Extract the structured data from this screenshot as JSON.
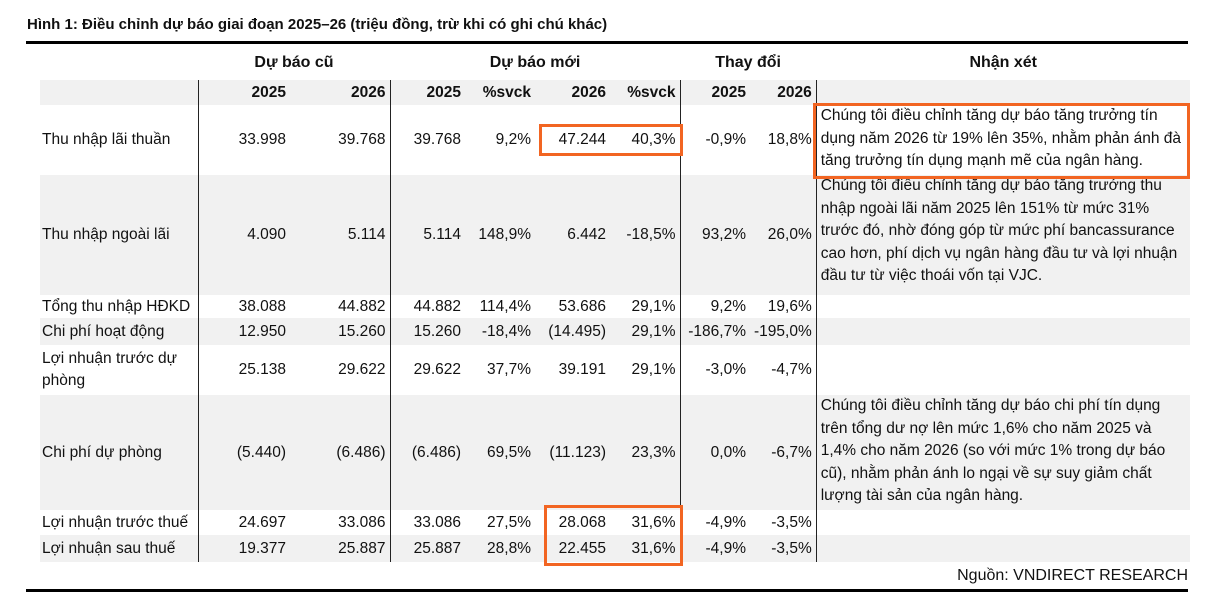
{
  "title": "Hình 1: Điều chỉnh dự báo giai đoạn 2025–26 (triệu đồng, trừ khi có ghi chú khác)",
  "groups": {
    "old": "Dự báo cũ",
    "new": "Dự báo mới",
    "change": "Thay đổi",
    "comment": "Nhận xét"
  },
  "columns": [
    "2025",
    "2026",
    "2025",
    "%svck",
    "2026",
    "%svck",
    "2025",
    "2026"
  ],
  "rows": [
    {
      "label": "Thu nhập lãi thuần",
      "values": [
        "33.998",
        "39.768",
        "39.768",
        "9,2%",
        "47.244",
        "40,3%",
        "-0,9%",
        "18,8%"
      ],
      "comment": "Chúng tôi điều chỉnh tăng dự báo tăng trưởng tín dụng năm 2026 từ 19% lên 35%, nhằm phản ánh đà tăng trưởng tín dụng mạnh mẽ của ngân hàng."
    },
    {
      "label": "Thu nhập ngoài lãi",
      "values": [
        "4.090",
        "5.114",
        "5.114",
        "148,9%",
        "6.442",
        "-18,5%",
        "93,2%",
        "26,0%"
      ],
      "comment": "Chúng tôi điều chỉnh tăng dự báo tăng trưởng thu nhập ngoài lãi năm 2025 lên 151% từ mức 31% trước đó, nhờ đóng góp từ mức phí bancassurance cao hơn, phí dịch vụ ngân hàng đầu tư và lợi nhuận đầu tư từ việc thoái vốn tại VJC."
    },
    {
      "label": "Tổng thu nhập HĐKD",
      "values": [
        "38.088",
        "44.882",
        "44.882",
        "114,4%",
        "53.686",
        "29,1%",
        "9,2%",
        "19,6%"
      ],
      "comment": ""
    },
    {
      "label": "Chi phí hoạt động",
      "values": [
        "12.950",
        "15.260",
        "15.260",
        "-18,4%",
        "(14.495)",
        "29,1%",
        "-186,7%",
        "-195,0%"
      ],
      "comment": ""
    },
    {
      "label": "Lợi nhuận trước dự phòng",
      "values": [
        "25.138",
        "29.622",
        "29.622",
        "37,7%",
        "39.191",
        "29,1%",
        "-3,0%",
        "-4,7%"
      ],
      "comment": ""
    },
    {
      "label": "Chi phí dự phòng",
      "values": [
        "(5.440)",
        "(6.486)",
        "(6.486)",
        "69,5%",
        "(11.123)",
        "23,3%",
        "0,0%",
        "-6,7%"
      ],
      "comment": "Chúng tôi điều chỉnh tăng dự báo chi phí tín dụng trên tổng dư nợ lên mức 1,6% cho năm 2025 và 1,4% cho năm 2026 (so với mức 1% trong dự báo cũ), nhằm phản ánh lo ngại về sự suy giảm chất lượng tài sản của ngân hàng."
    },
    {
      "label": "Lợi nhuận trước thuế",
      "values": [
        "24.697",
        "33.086",
        "33.086",
        "27,5%",
        "28.068",
        "31,6%",
        "-4,9%",
        "-3,5%"
      ],
      "comment": ""
    },
    {
      "label": "Lợi nhuận sau thuế",
      "values": [
        "19.377",
        "25.887",
        "25.887",
        "28,8%",
        "22.455",
        "31,6%",
        "-4,9%",
        "-3,5%"
      ],
      "comment": ""
    }
  ],
  "source": "Nguồn: VNDIRECT RESEARCH",
  "highlight_color": "#f26522"
}
